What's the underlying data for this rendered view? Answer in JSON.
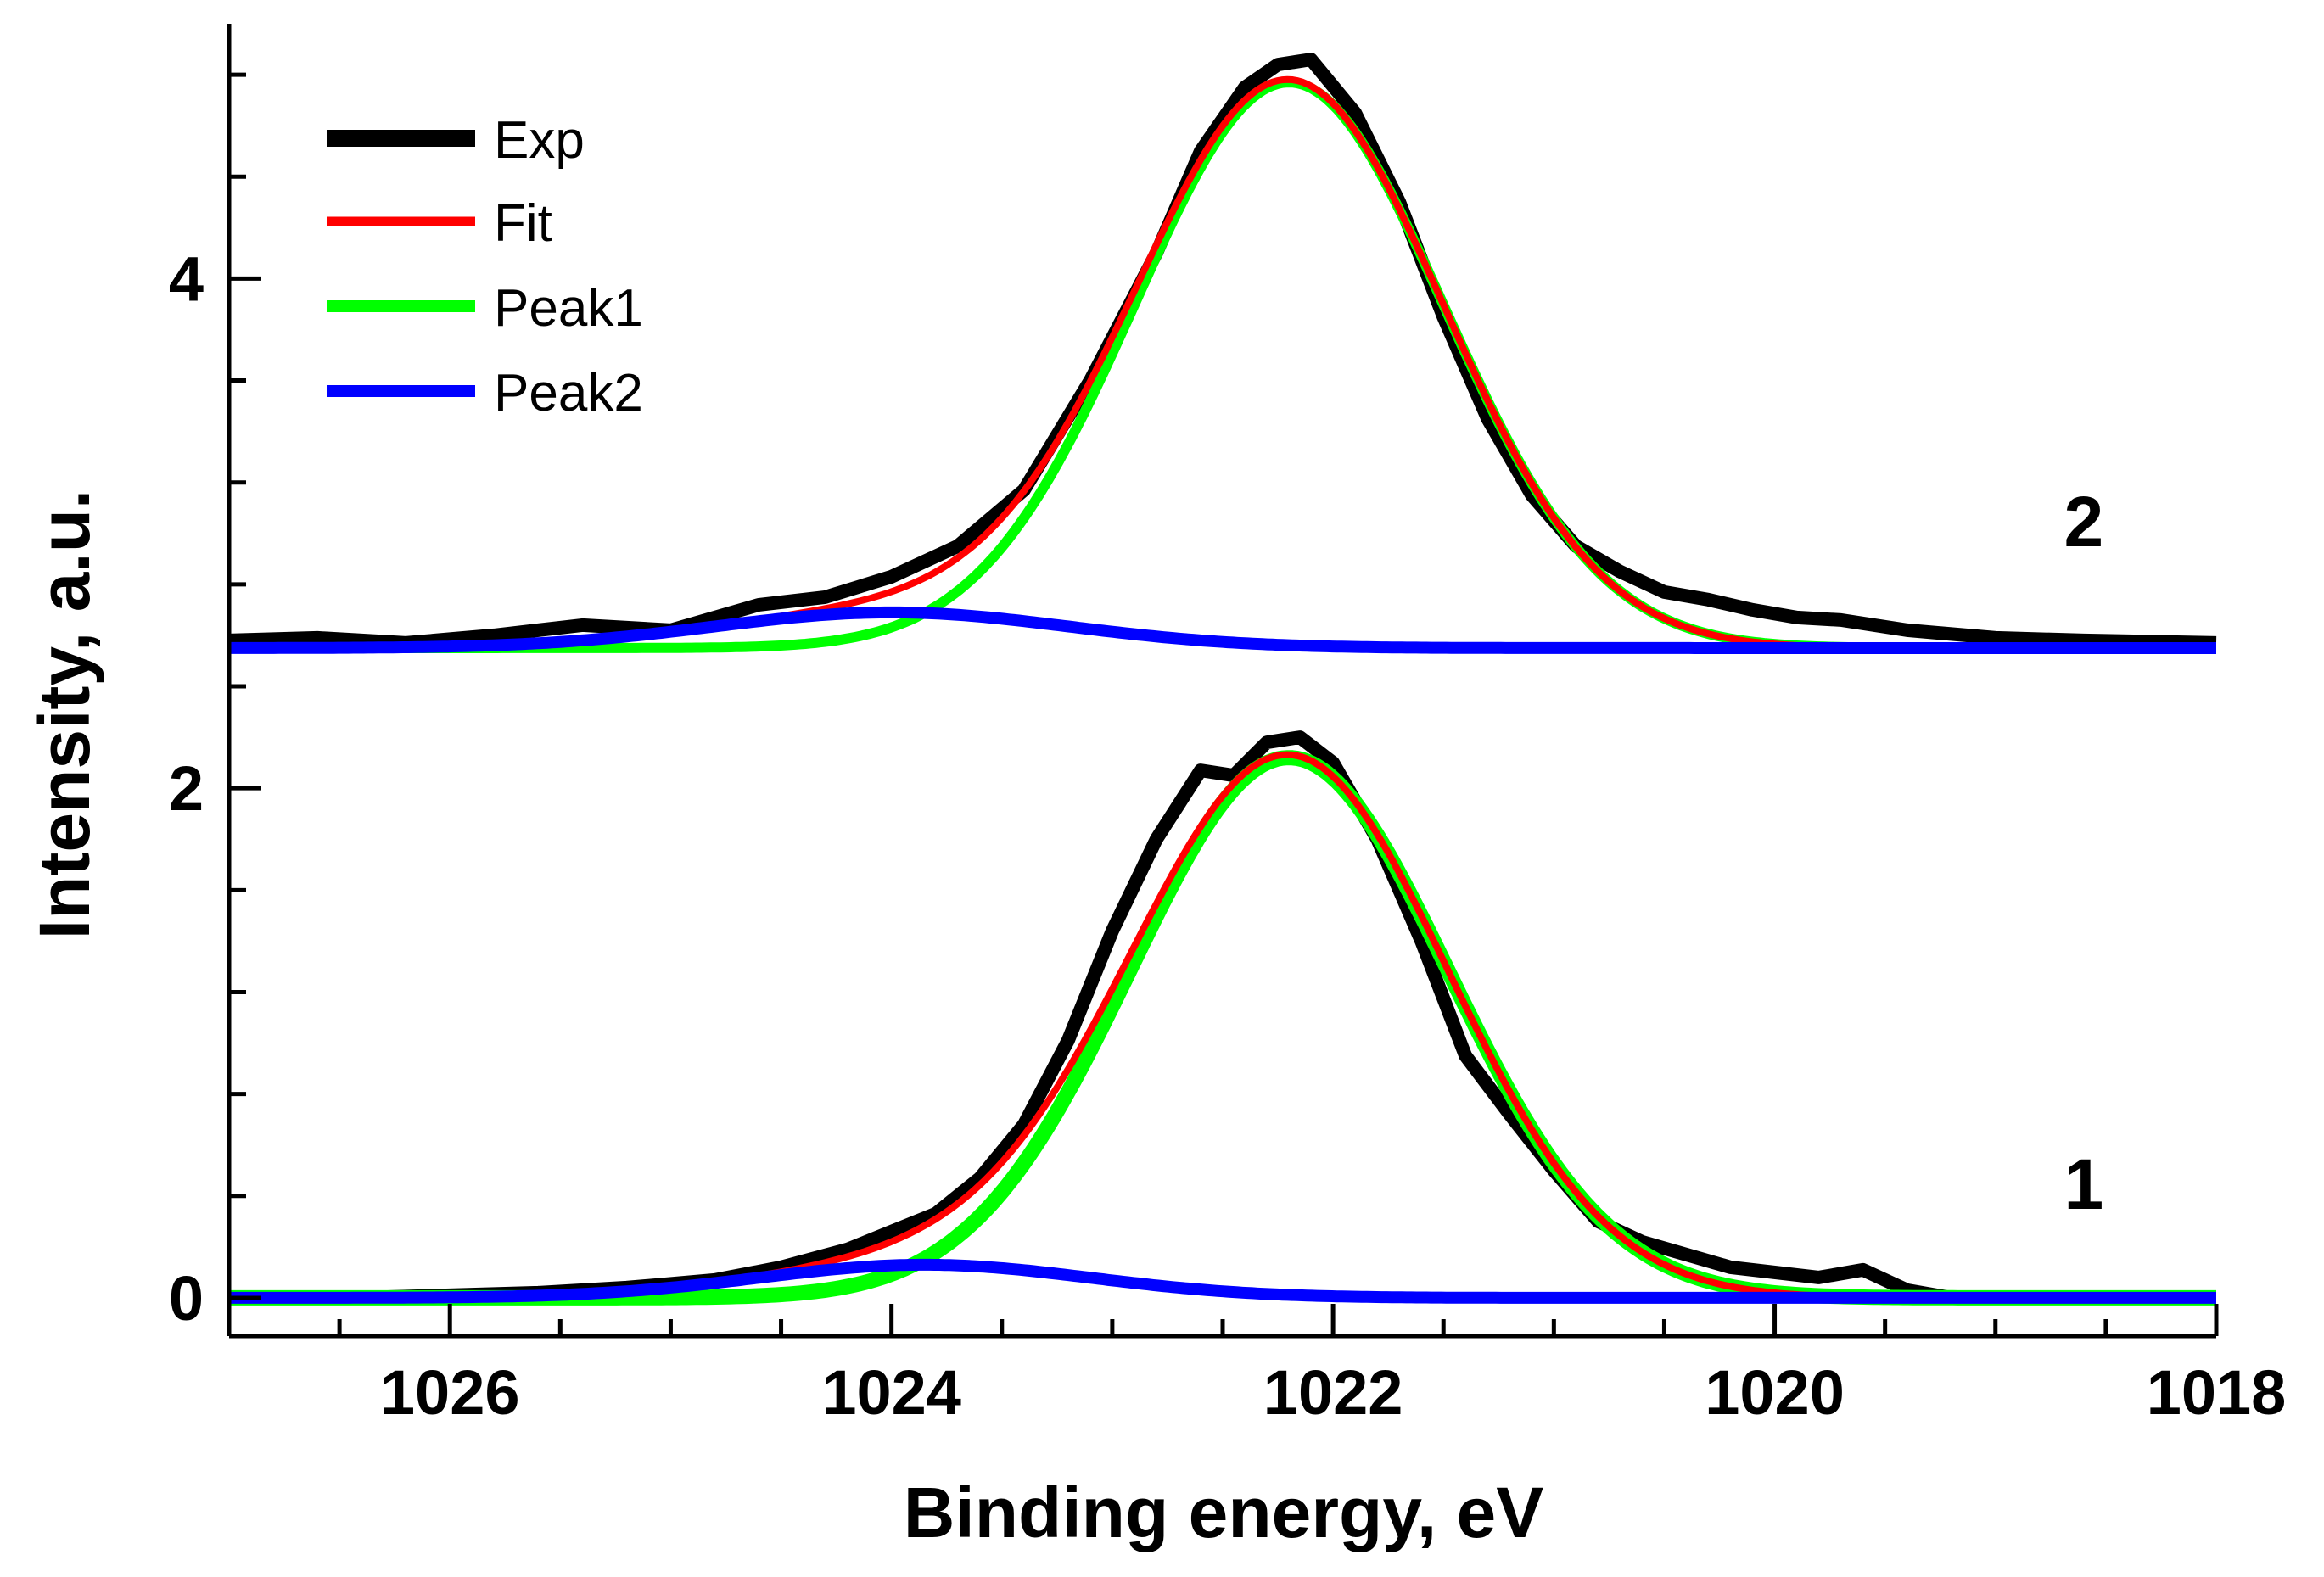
{
  "chart_data": {
    "type": "line",
    "title": "",
    "xlabel": "Binding energy, eV",
    "ylabel": "Intensity, a.u.",
    "xlim": [
      1027,
      1018
    ],
    "ylim": [
      -0.15,
      5.0
    ],
    "x_ticks": [
      1026,
      1024,
      1022,
      1020,
      1018
    ],
    "x_tick_labels": [
      "1026",
      "1024",
      "1022",
      "1020",
      "1018"
    ],
    "y_ticks": [
      0,
      2,
      4
    ],
    "y_tick_labels": [
      "0",
      "2",
      "4"
    ],
    "legend": {
      "placement": "top-left",
      "entries": [
        {
          "label": "Exp",
          "color": "#000000"
        },
        {
          "label": "Fit",
          "color": "#ff0000"
        },
        {
          "label": "Peak1",
          "color": "#00ff00"
        },
        {
          "label": "Peak2",
          "color": "#0000ff"
        }
      ]
    },
    "spectra": [
      {
        "label": "1",
        "baseline": 0.0,
        "label_position": {
          "x": 1018.6,
          "y": 0.35
        },
        "peak1": {
          "center": 1022.2,
          "amplitude": 2.12,
          "sigma": 0.72
        },
        "peak2": {
          "center": 1023.85,
          "amplitude": 0.13,
          "sigma": 0.75
        },
        "exp": {
          "x": [
            1027,
            1026.4,
            1026,
            1025.6,
            1025.2,
            1024.8,
            1024.5,
            1024.2,
            1024.0,
            1023.8,
            1023.6,
            1023.4,
            1023.2,
            1023.0,
            1022.8,
            1022.6,
            1022.45,
            1022.3,
            1022.15,
            1022.0,
            1021.8,
            1021.6,
            1021.4,
            1021.2,
            1021.0,
            1020.8,
            1020.6,
            1020.4,
            1020.2,
            1020.0,
            1019.8,
            1019.6,
            1019.4,
            1019.2,
            1019.0,
            1018.6,
            1018
          ],
          "y": [
            0.0,
            0.0,
            0.01,
            0.02,
            0.04,
            0.07,
            0.12,
            0.19,
            0.26,
            0.33,
            0.47,
            0.68,
            1.01,
            1.44,
            1.8,
            2.07,
            2.05,
            2.18,
            2.2,
            2.1,
            1.8,
            1.4,
            0.95,
            0.72,
            0.5,
            0.3,
            0.22,
            0.17,
            0.12,
            0.1,
            0.08,
            0.11,
            0.03,
            0.0,
            0.0,
            0.0,
            0.0
          ]
        }
      },
      {
        "label": "2",
        "baseline": 2.55,
        "label_position": {
          "x": 1018.6,
          "y": 2.95
        },
        "peak1": {
          "center": 1022.2,
          "amplitude": 2.22,
          "sigma": 0.7
        },
        "peak2": {
          "center": 1024.0,
          "amplitude": 0.14,
          "sigma": 0.8
        },
        "exp": {
          "x": [
            1027,
            1026.6,
            1026.2,
            1025.8,
            1025.4,
            1025.0,
            1024.6,
            1024.3,
            1024.0,
            1023.7,
            1023.4,
            1023.1,
            1022.8,
            1022.6,
            1022.4,
            1022.25,
            1022.1,
            1021.9,
            1021.7,
            1021.5,
            1021.3,
            1021.1,
            1020.9,
            1020.7,
            1020.5,
            1020.3,
            1020.1,
            1019.9,
            1019.7,
            1019.4,
            1019.0,
            1018.6,
            1018
          ],
          "y": [
            2.58,
            2.59,
            2.57,
            2.6,
            2.64,
            2.62,
            2.72,
            2.75,
            2.83,
            2.95,
            3.17,
            3.6,
            4.1,
            4.5,
            4.75,
            4.84,
            4.86,
            4.65,
            4.3,
            3.85,
            3.45,
            3.15,
            2.95,
            2.85,
            2.77,
            2.74,
            2.7,
            2.67,
            2.66,
            2.62,
            2.59,
            2.58,
            2.57
          ]
        }
      }
    ]
  }
}
